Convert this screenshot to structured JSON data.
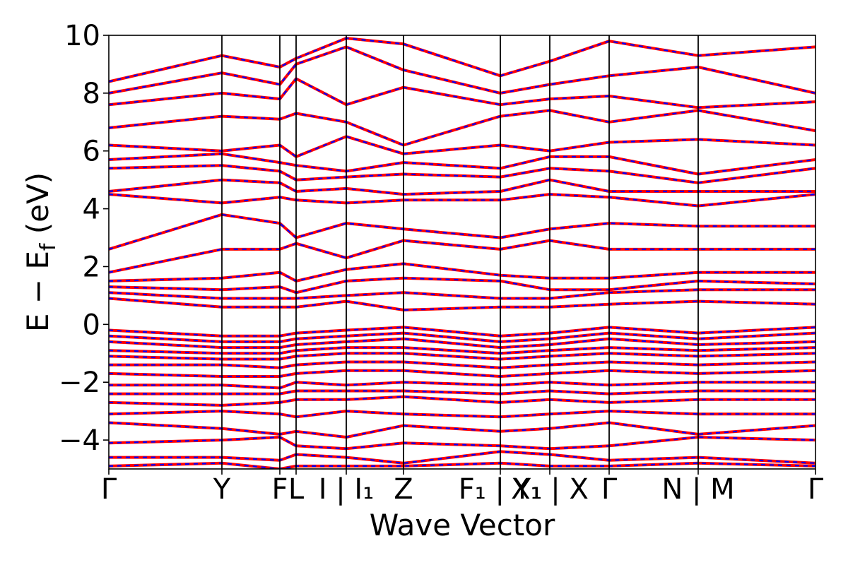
{
  "chart_data": {
    "type": "line",
    "title": "",
    "xlabel": "Wave Vector",
    "ylabel": "E − E_f (eV)",
    "ylabel_parts": {
      "main": "E − E",
      "sub": "f",
      "unit": " (eV)"
    },
    "ylim": [
      -5,
      10
    ],
    "xlim": [
      0,
      100
    ],
    "yticks": [
      -4,
      -2,
      0,
      2,
      4,
      6,
      8,
      10
    ],
    "ytick_labels": [
      "−4",
      "−2",
      "0",
      "2",
      "4",
      "6",
      "8",
      "10"
    ],
    "grid": false,
    "legend": "none",
    "colors": {
      "solid_line": "#ff0000",
      "dashed_line": "#0000ff",
      "kpoint_line": "#000000"
    },
    "kpoints": [
      {
        "x": 0.0,
        "label": "Γ",
        "display": "Γ"
      },
      {
        "x": 16.0,
        "label": "Y",
        "display": "Y"
      },
      {
        "x": 24.2,
        "label": "F",
        "display": "F"
      },
      {
        "x": 26.5,
        "label": "L",
        "display": "L"
      },
      {
        "x": 33.6,
        "label": "I|I1",
        "display": "I | I₁"
      },
      {
        "x": 41.7,
        "label": "Z",
        "display": "Z"
      },
      {
        "x": 55.4,
        "label": "F1|Y1",
        "display": "F₁ | Y₁"
      },
      {
        "x": 62.4,
        "label": "X1|X",
        "display": "X₁ | X"
      },
      {
        "x": 70.8,
        "label": "Γ",
        "display": "Γ"
      },
      {
        "x": 83.4,
        "label": "N|M",
        "display": "N | M"
      },
      {
        "x": 100.0,
        "label": "Γ",
        "display": "Γ"
      }
    ],
    "series": [
      {
        "values": [
          8.4,
          9.3,
          8.9,
          9.2,
          9.9,
          9.7,
          8.6,
          9.1,
          9.8,
          9.3,
          9.6
        ]
      },
      {
        "values": [
          8.0,
          8.7,
          8.3,
          9.0,
          9.6,
          8.8,
          8.0,
          8.3,
          8.6,
          8.9,
          8.0
        ]
      },
      {
        "values": [
          7.6,
          8.0,
          7.8,
          8.5,
          7.6,
          8.2,
          7.6,
          7.8,
          7.9,
          7.5,
          7.7
        ]
      },
      {
        "values": [
          6.8,
          7.2,
          7.1,
          7.3,
          7.0,
          6.2,
          7.2,
          7.4,
          7.0,
          7.4,
          6.7
        ]
      },
      {
        "values": [
          6.2,
          6.0,
          6.2,
          5.8,
          6.5,
          5.9,
          6.2,
          6.0,
          6.3,
          6.4,
          6.2
        ]
      },
      {
        "values": [
          5.7,
          5.9,
          5.6,
          5.5,
          5.3,
          5.6,
          5.4,
          5.8,
          5.8,
          5.2,
          5.7
        ]
      },
      {
        "values": [
          5.4,
          5.5,
          5.3,
          5.0,
          5.1,
          5.2,
          5.1,
          5.4,
          5.3,
          4.9,
          5.4
        ]
      },
      {
        "values": [
          4.6,
          5.0,
          4.9,
          4.6,
          4.7,
          4.5,
          4.6,
          5.0,
          4.6,
          4.6,
          4.6
        ]
      },
      {
        "values": [
          4.5,
          4.2,
          4.4,
          4.3,
          4.2,
          4.3,
          4.3,
          4.5,
          4.4,
          4.1,
          4.5
        ]
      },
      {
        "values": [
          2.6,
          3.8,
          3.5,
          3.0,
          3.5,
          3.3,
          3.0,
          3.3,
          3.5,
          3.4,
          3.4
        ]
      },
      {
        "values": [
          1.8,
          2.6,
          2.6,
          2.8,
          2.3,
          2.9,
          2.6,
          2.9,
          2.6,
          2.6,
          2.6
        ]
      },
      {
        "values": [
          1.5,
          1.6,
          1.8,
          1.5,
          1.9,
          2.1,
          1.7,
          1.6,
          1.6,
          1.8,
          1.8
        ]
      },
      {
        "values": [
          1.3,
          1.2,
          1.3,
          1.1,
          1.5,
          1.6,
          1.5,
          1.2,
          1.2,
          1.5,
          1.4
        ]
      },
      {
        "values": [
          1.1,
          0.9,
          0.9,
          0.9,
          1.0,
          1.1,
          0.9,
          0.9,
          1.1,
          1.2,
          1.2
        ]
      },
      {
        "values": [
          0.9,
          0.6,
          0.6,
          0.6,
          0.8,
          0.5,
          0.6,
          0.6,
          0.7,
          0.8,
          0.7
        ]
      },
      {
        "values": [
          -0.2,
          -0.4,
          -0.4,
          -0.3,
          -0.2,
          -0.1,
          -0.4,
          -0.3,
          -0.1,
          -0.3,
          -0.1
        ]
      },
      {
        "values": [
          -0.4,
          -0.6,
          -0.6,
          -0.5,
          -0.4,
          -0.3,
          -0.6,
          -0.5,
          -0.3,
          -0.5,
          -0.3
        ]
      },
      {
        "values": [
          -0.6,
          -0.8,
          -0.8,
          -0.7,
          -0.6,
          -0.5,
          -0.8,
          -0.7,
          -0.5,
          -0.7,
          -0.6
        ]
      },
      {
        "values": [
          -0.9,
          -1.0,
          -1.0,
          -0.9,
          -0.8,
          -0.8,
          -1.0,
          -0.9,
          -0.8,
          -0.9,
          -0.8
        ]
      },
      {
        "values": [
          -1.1,
          -1.2,
          -1.2,
          -1.1,
          -1.0,
          -1.0,
          -1.2,
          -1.1,
          -1.0,
          -1.1,
          -1.0
        ]
      },
      {
        "values": [
          -1.4,
          -1.4,
          -1.5,
          -1.4,
          -1.3,
          -1.3,
          -1.5,
          -1.4,
          -1.3,
          -1.4,
          -1.3
        ]
      },
      {
        "values": [
          -1.7,
          -1.8,
          -1.8,
          -1.7,
          -1.6,
          -1.6,
          -1.8,
          -1.7,
          -1.6,
          -1.7,
          -1.6
        ]
      },
      {
        "values": [
          -2.1,
          -2.1,
          -2.2,
          -2.0,
          -2.1,
          -2.0,
          -2.1,
          -2.0,
          -2.1,
          -2.0,
          -2.0
        ]
      },
      {
        "values": [
          -2.4,
          -2.4,
          -2.4,
          -2.3,
          -2.3,
          -2.3,
          -2.4,
          -2.3,
          -2.4,
          -2.3,
          -2.3
        ]
      },
      {
        "values": [
          -2.7,
          -2.8,
          -2.7,
          -2.6,
          -2.6,
          -2.5,
          -2.7,
          -2.6,
          -2.7,
          -2.6,
          -2.6
        ]
      },
      {
        "values": [
          -3.1,
          -3.0,
          -3.1,
          -3.2,
          -3.0,
          -3.1,
          -3.2,
          -3.1,
          -3.0,
          -3.1,
          -3.1
        ]
      },
      {
        "values": [
          -3.4,
          -3.6,
          -3.8,
          -3.7,
          -3.9,
          -3.5,
          -3.7,
          -3.6,
          -3.4,
          -3.8,
          -3.5
        ]
      },
      {
        "values": [
          -4.1,
          -4.0,
          -3.9,
          -4.2,
          -4.3,
          -4.1,
          -4.2,
          -4.3,
          -4.2,
          -3.9,
          -4.0
        ]
      },
      {
        "values": [
          -4.6,
          -4.6,
          -4.7,
          -4.5,
          -4.6,
          -4.8,
          -4.4,
          -4.5,
          -4.7,
          -4.6,
          -4.8
        ]
      },
      {
        "values": [
          -4.9,
          -4.8,
          -5.0,
          -4.9,
          -4.9,
          -4.9,
          -4.8,
          -4.9,
          -4.9,
          -4.8,
          -4.9
        ]
      }
    ]
  }
}
